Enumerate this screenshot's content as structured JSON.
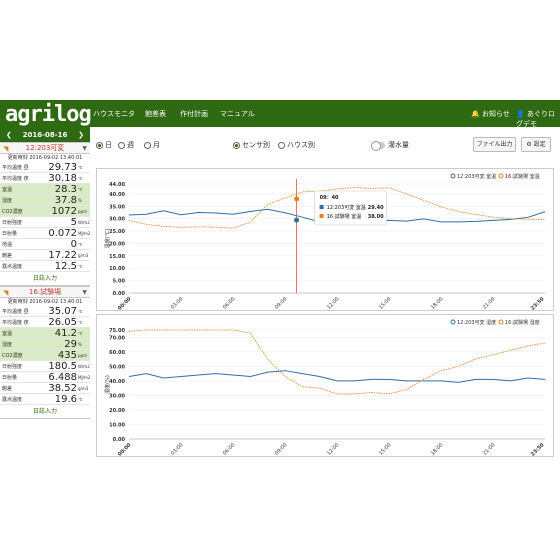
{
  "app": {
    "logo": "agrilog"
  },
  "nav": {
    "items": [
      "ハウスモニタ",
      "飽差表",
      "作付計画",
      "マニュアル"
    ],
    "notices": "お知らせ",
    "user": "あぐりログデモ"
  },
  "sidebar": {
    "date": "2016-08-16",
    "prev": "❮",
    "next": "❯",
    "entry_label": "日誌入力",
    "sections": [
      {
        "title": "12:203可変",
        "updated": "更新時刻 2016-09-02 13:40:01",
        "rows": [
          {
            "label": "平均温度 昼",
            "value": "29.73",
            "unit": "℃",
            "green": false
          },
          {
            "label": "平均温度 夜",
            "value": "30.18",
            "unit": "℃",
            "green": false
          },
          {
            "label": "室温",
            "value": "28.3",
            "unit": "℃",
            "green": true
          },
          {
            "label": "湿度",
            "value": "37.8",
            "unit": "%",
            "green": true
          },
          {
            "label": "CO2濃度",
            "value": "1072",
            "unit": "ppm",
            "green": true
          },
          {
            "label": "日射強度",
            "value": "5",
            "unit": "W/m2",
            "green": false
          },
          {
            "label": "日射量",
            "value": "0.072",
            "unit": "MJ/m2",
            "green": false
          },
          {
            "label": "地温",
            "value": "0",
            "unit": "℃",
            "green": false
          },
          {
            "label": "飽差",
            "value": "17.22",
            "unit": "g/m3",
            "green": false
          },
          {
            "label": "露点温度",
            "value": "12.5",
            "unit": "℃",
            "green": false
          }
        ]
      },
      {
        "title": "16:試験場",
        "updated": "更新時刻 2016-09-02 13:40:01",
        "rows": [
          {
            "label": "平均温度 昼",
            "value": "35.07",
            "unit": "℃",
            "green": false
          },
          {
            "label": "平均温度 夜",
            "value": "26.05",
            "unit": "℃",
            "green": false
          },
          {
            "label": "室温",
            "value": "41.2",
            "unit": "℃",
            "green": true
          },
          {
            "label": "湿度",
            "value": "29",
            "unit": "%",
            "green": true
          },
          {
            "label": "CO2濃度",
            "value": "435",
            "unit": "ppm",
            "green": true
          },
          {
            "label": "日射強度",
            "value": "180.5",
            "unit": "W/m2",
            "green": false
          },
          {
            "label": "日射量",
            "value": "6.488",
            "unit": "MJ/m2",
            "green": false
          },
          {
            "label": "飽差",
            "value": "38.52",
            "unit": "g/m3",
            "green": false
          },
          {
            "label": "露点温度",
            "value": "19.6",
            "unit": "℃",
            "green": false
          }
        ]
      }
    ]
  },
  "controls": {
    "period": [
      {
        "label": "日",
        "on": true
      },
      {
        "label": "週",
        "on": false
      },
      {
        "label": "月",
        "on": false
      }
    ],
    "grouping": [
      {
        "label": "センサ別",
        "on": true
      },
      {
        "label": "ハウス別",
        "on": false
      }
    ],
    "irrigation": "灌水量",
    "file_button": "ファイル出力",
    "settings_button": "設定"
  },
  "colors": {
    "series_a": "#2f6fa7",
    "series_b": "#f07d1a",
    "marker": "#e74c3c",
    "brand": "#2e6a12"
  },
  "chart_data": [
    {
      "type": "line",
      "ylabel": "温度(℃)",
      "ylim": [
        0,
        44
      ],
      "yticks": [
        "44.00",
        "40.00",
        "35.00",
        "30.00",
        "25.00",
        "20.00",
        "15.00",
        "10.00",
        "5.00",
        "0.00"
      ],
      "xticks": [
        "00:00",
        "03:00",
        "06:00",
        "09:00",
        "12:00",
        "15:00",
        "18:00",
        "21:00",
        "23:50"
      ],
      "x": [
        0,
        1,
        2,
        3,
        4,
        5,
        6,
        7,
        8,
        9,
        10,
        11,
        12,
        13,
        14,
        15,
        16,
        17,
        18,
        19,
        20,
        21,
        22,
        23,
        24
      ],
      "series": [
        {
          "name": "12:203可変 室温",
          "values": [
            31.5,
            31.8,
            33.2,
            31.6,
            32.5,
            32.3,
            31.8,
            32.9,
            33.8,
            32.4,
            30.6,
            28.7,
            29.8,
            29.0,
            28.9,
            29.3,
            29.0,
            29.9,
            28.7,
            28.7,
            28.9,
            29.3,
            29.7,
            30.5,
            32.8
          ]
        },
        {
          "name": "16:試験場 室温",
          "values": [
            29.3,
            27.7,
            26.9,
            26.5,
            26.7,
            26.6,
            26.2,
            28.6,
            35.8,
            38.3,
            40.8,
            41.1,
            42.0,
            42.6,
            42.2,
            42.5,
            40.0,
            37.4,
            34.8,
            32.9,
            31.7,
            30.6,
            30.0,
            29.8,
            29.6
          ]
        }
      ],
      "tooltip": {
        "time": "09：40",
        "rows": [
          {
            "name": "12:203可変 室温",
            "value": "29.40"
          },
          {
            "name": "16:試験場 室温",
            "value": "38.00"
          }
        ]
      },
      "cursor_x": 9.67
    },
    {
      "type": "line",
      "ylabel": "湿度(%)",
      "ylim": [
        0,
        75
      ],
      "yticks": [
        "75.00",
        "70.00",
        "60.00",
        "50.00",
        "40.00",
        "30.00",
        "20.00",
        "10.00",
        "0.00"
      ],
      "xticks": [
        "00:00",
        "03:00",
        "06:00",
        "09:00",
        "12:00",
        "15:00",
        "18:00",
        "21:00",
        "23:50"
      ],
      "x": [
        0,
        1,
        2,
        3,
        4,
        5,
        6,
        7,
        8,
        9,
        10,
        11,
        12,
        13,
        14,
        15,
        16,
        17,
        18,
        19,
        20,
        21,
        22,
        23,
        24
      ],
      "series": [
        {
          "name": "12:203可変 湿度",
          "values": [
            43,
            45,
            42,
            43,
            44,
            45,
            44,
            43,
            46,
            47,
            45,
            43,
            40,
            40,
            41,
            41,
            40,
            40,
            40,
            39,
            41,
            41,
            40,
            42,
            41
          ]
        },
        {
          "name": "16:試験場 湿度",
          "values": [
            74,
            75,
            75,
            75,
            75,
            75,
            75,
            73,
            55,
            43,
            36,
            35,
            31,
            31,
            32,
            31,
            34,
            41,
            47,
            50,
            55,
            58,
            61,
            64,
            66
          ]
        }
      ]
    }
  ]
}
